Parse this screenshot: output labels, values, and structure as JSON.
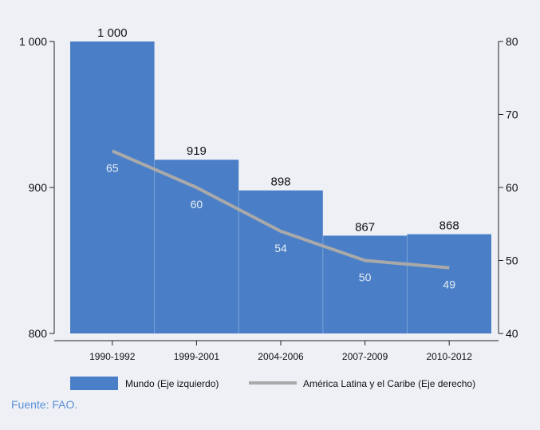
{
  "chart_data": {
    "type": "bar",
    "categories": [
      "1990-1992",
      "1999-2001",
      "2004-2006",
      "2007-2009",
      "2010-2012"
    ],
    "bar_labels": [
      "1 000",
      "919",
      "898",
      "867",
      "868"
    ],
    "series": [
      {
        "name": "Mundo (Eje izquierdo)",
        "type": "bar",
        "axis": "left",
        "values": [
          1000,
          919,
          898,
          867,
          868
        ],
        "color": "#4a7fc7"
      },
      {
        "name": "América Latina y el Caribe (Eje derecho)",
        "type": "line",
        "axis": "right",
        "values": [
          65,
          60,
          54,
          50,
          49
        ],
        "color": "#a9a9a9"
      }
    ],
    "left_axis": {
      "ylim": [
        800,
        1000
      ],
      "ticks": [
        800,
        900,
        1000
      ],
      "tick_labels": [
        "800",
        "900",
        "1 000"
      ]
    },
    "right_axis": {
      "ylim": [
        40,
        80
      ],
      "ticks": [
        40,
        50,
        60,
        70,
        80
      ],
      "tick_labels": [
        "40",
        "50",
        "60",
        "70",
        "80"
      ]
    },
    "grid": false,
    "legend_position": "bottom"
  },
  "source": "Fuente: FAO.",
  "colors": {
    "background": "#eef0f6",
    "bar": "#4a7fc7",
    "line": "#a9a9a9",
    "source_text": "#5a8fd6"
  }
}
